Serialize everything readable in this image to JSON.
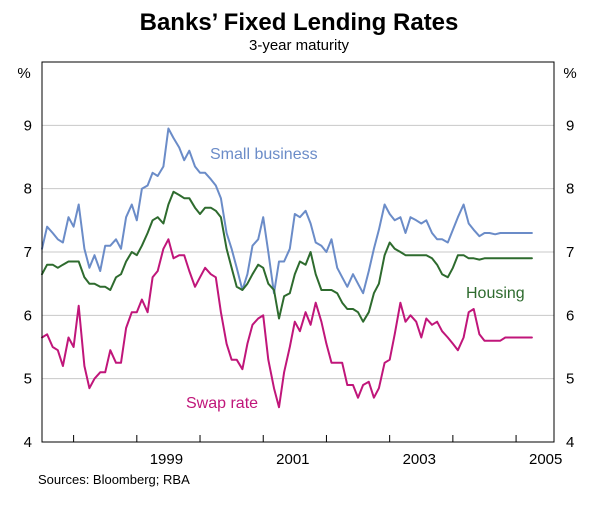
{
  "chart_data": {
    "type": "line",
    "title": "Banks’ Fixed Lending Rates",
    "subtitle": "3-year maturity",
    "ylabel_left": "%",
    "ylabel_right": "%",
    "ylim": [
      4,
      10
    ],
    "yticks": [
      "4",
      "5",
      "6",
      "7",
      "8",
      "9"
    ],
    "xlim": [
      1997.5,
      2005.6
    ],
    "xticks": [
      {
        "value": 1999.0,
        "label": "1999"
      },
      {
        "value": 2001.0,
        "label": "2001"
      },
      {
        "value": 2003.0,
        "label": "2003"
      },
      {
        "value": 2005.0,
        "label": "2005"
      }
    ],
    "source": "Sources: Bloomberg; RBA",
    "series": [
      {
        "name": "Small business",
        "color": "#6b8cc8",
        "x": [
          1997.5,
          1997.58,
          1997.67,
          1997.75,
          1997.83,
          1997.92,
          1998.0,
          1998.08,
          1998.17,
          1998.25,
          1998.33,
          1998.42,
          1998.5,
          1998.58,
          1998.67,
          1998.75,
          1998.83,
          1998.92,
          1999.0,
          1999.08,
          1999.17,
          1999.25,
          1999.33,
          1999.42,
          1999.5,
          1999.58,
          1999.67,
          1999.75,
          1999.83,
          1999.92,
          2000.0,
          2000.08,
          2000.17,
          2000.25,
          2000.33,
          2000.42,
          2000.5,
          2000.58,
          2000.67,
          2000.75,
          2000.83,
          2000.92,
          2001.0,
          2001.08,
          2001.17,
          2001.25,
          2001.33,
          2001.42,
          2001.5,
          2001.58,
          2001.67,
          2001.75,
          2001.83,
          2001.92,
          2002.0,
          2002.08,
          2002.17,
          2002.25,
          2002.33,
          2002.42,
          2002.5,
          2002.58,
          2002.67,
          2002.75,
          2002.83,
          2002.92,
          2003.0,
          2003.08,
          2003.17,
          2003.25,
          2003.33,
          2003.42,
          2003.5,
          2003.58,
          2003.67,
          2003.75,
          2003.83,
          2003.92,
          2004.0,
          2004.08,
          2004.17,
          2004.25,
          2004.33,
          2004.42,
          2004.5,
          2004.58,
          2004.67,
          2004.75,
          2004.83,
          2004.92,
          2005.0,
          2005.08,
          2005.17,
          2005.25
        ],
        "values": [
          7.05,
          7.4,
          7.3,
          7.2,
          7.15,
          7.55,
          7.4,
          7.75,
          7.05,
          6.75,
          6.95,
          6.7,
          7.1,
          7.1,
          7.2,
          7.05,
          7.55,
          7.75,
          7.5,
          8.0,
          8.05,
          8.25,
          8.2,
          8.35,
          8.95,
          8.8,
          8.65,
          8.45,
          8.6,
          8.35,
          8.25,
          8.25,
          8.15,
          8.05,
          7.85,
          7.3,
          7.05,
          6.75,
          6.4,
          6.65,
          7.1,
          7.2,
          7.55,
          7.0,
          6.35,
          6.85,
          6.85,
          7.05,
          7.6,
          7.55,
          7.65,
          7.45,
          7.15,
          7.1,
          7.0,
          7.2,
          6.75,
          6.6,
          6.45,
          6.65,
          6.5,
          6.35,
          6.7,
          7.05,
          7.35,
          7.75,
          7.6,
          7.5,
          7.55,
          7.3,
          7.55,
          7.5,
          7.45,
          7.5,
          7.3,
          7.2,
          7.2,
          7.15,
          7.35,
          7.55,
          7.75,
          7.45,
          7.35,
          7.25,
          7.3,
          7.3,
          7.28,
          7.3,
          7.3,
          7.3,
          7.3,
          7.3,
          7.3,
          7.3
        ]
      },
      {
        "name": "Housing",
        "color": "#2e6b2e",
        "x": [
          1997.5,
          1997.58,
          1997.67,
          1997.75,
          1997.83,
          1997.92,
          1998.0,
          1998.08,
          1998.17,
          1998.25,
          1998.33,
          1998.42,
          1998.5,
          1998.58,
          1998.67,
          1998.75,
          1998.83,
          1998.92,
          1999.0,
          1999.08,
          1999.17,
          1999.25,
          1999.33,
          1999.42,
          1999.5,
          1999.58,
          1999.67,
          1999.75,
          1999.83,
          1999.92,
          2000.0,
          2000.08,
          2000.17,
          2000.25,
          2000.33,
          2000.42,
          2000.5,
          2000.58,
          2000.67,
          2000.75,
          2000.83,
          2000.92,
          2001.0,
          2001.08,
          2001.17,
          2001.25,
          2001.33,
          2001.42,
          2001.5,
          2001.58,
          2001.67,
          2001.75,
          2001.83,
          2001.92,
          2002.0,
          2002.08,
          2002.17,
          2002.25,
          2002.33,
          2002.42,
          2002.5,
          2002.58,
          2002.67,
          2002.75,
          2002.83,
          2002.92,
          2003.0,
          2003.08,
          2003.17,
          2003.25,
          2003.33,
          2003.42,
          2003.5,
          2003.58,
          2003.67,
          2003.75,
          2003.83,
          2003.92,
          2004.0,
          2004.08,
          2004.17,
          2004.25,
          2004.33,
          2004.42,
          2004.5,
          2004.58,
          2004.67,
          2004.75,
          2004.83,
          2004.92,
          2005.0,
          2005.08,
          2005.17,
          2005.25
        ],
        "values": [
          6.65,
          6.8,
          6.8,
          6.75,
          6.8,
          6.85,
          6.85,
          6.85,
          6.6,
          6.5,
          6.5,
          6.45,
          6.45,
          6.4,
          6.6,
          6.65,
          6.85,
          7.0,
          6.95,
          7.1,
          7.3,
          7.5,
          7.55,
          7.45,
          7.75,
          7.95,
          7.9,
          7.85,
          7.85,
          7.7,
          7.6,
          7.7,
          7.7,
          7.65,
          7.55,
          7.05,
          6.75,
          6.45,
          6.4,
          6.5,
          6.65,
          6.8,
          6.75,
          6.5,
          6.4,
          5.95,
          6.3,
          6.35,
          6.65,
          6.85,
          6.8,
          7.0,
          6.65,
          6.4,
          6.4,
          6.4,
          6.35,
          6.2,
          6.1,
          6.1,
          6.05,
          5.9,
          6.05,
          6.35,
          6.5,
          6.95,
          7.15,
          7.05,
          7.0,
          6.95,
          6.95,
          6.95,
          6.95,
          6.95,
          6.9,
          6.8,
          6.65,
          6.6,
          6.75,
          6.95,
          6.95,
          6.9,
          6.9,
          6.88,
          6.9,
          6.9,
          6.9,
          6.9,
          6.9,
          6.9,
          6.9,
          6.9,
          6.9,
          6.9
        ]
      },
      {
        "name": "Swap rate",
        "color": "#c0167a",
        "x": [
          1997.5,
          1997.58,
          1997.67,
          1997.75,
          1997.83,
          1997.92,
          1998.0,
          1998.08,
          1998.17,
          1998.25,
          1998.33,
          1998.42,
          1998.5,
          1998.58,
          1998.67,
          1998.75,
          1998.83,
          1998.92,
          1999.0,
          1999.08,
          1999.17,
          1999.25,
          1999.33,
          1999.42,
          1999.5,
          1999.58,
          1999.67,
          1999.75,
          1999.83,
          1999.92,
          2000.0,
          2000.08,
          2000.17,
          2000.25,
          2000.33,
          2000.42,
          2000.5,
          2000.58,
          2000.67,
          2000.75,
          2000.83,
          2000.92,
          2001.0,
          2001.08,
          2001.17,
          2001.25,
          2001.33,
          2001.42,
          2001.5,
          2001.58,
          2001.67,
          2001.75,
          2001.83,
          2001.92,
          2002.0,
          2002.08,
          2002.17,
          2002.25,
          2002.33,
          2002.42,
          2002.5,
          2002.58,
          2002.67,
          2002.75,
          2002.83,
          2002.92,
          2003.0,
          2003.08,
          2003.17,
          2003.25,
          2003.33,
          2003.42,
          2003.5,
          2003.58,
          2003.67,
          2003.75,
          2003.83,
          2003.92,
          2004.0,
          2004.08,
          2004.17,
          2004.25,
          2004.33,
          2004.42,
          2004.5,
          2004.58,
          2004.67,
          2004.75,
          2004.83,
          2004.92,
          2005.0,
          2005.08,
          2005.17,
          2005.25
        ],
        "values": [
          5.65,
          5.7,
          5.5,
          5.45,
          5.2,
          5.65,
          5.5,
          6.15,
          5.2,
          4.85,
          5.0,
          5.1,
          5.1,
          5.45,
          5.25,
          5.25,
          5.8,
          6.05,
          6.05,
          6.25,
          6.05,
          6.6,
          6.7,
          7.05,
          7.2,
          6.9,
          6.95,
          6.95,
          6.7,
          6.45,
          6.6,
          6.75,
          6.65,
          6.6,
          6.05,
          5.55,
          5.3,
          5.3,
          5.15,
          5.55,
          5.85,
          5.95,
          6.0,
          5.3,
          4.85,
          4.55,
          5.1,
          5.5,
          5.9,
          5.75,
          6.05,
          5.85,
          6.2,
          5.9,
          5.55,
          5.25,
          5.25,
          5.25,
          4.9,
          4.9,
          4.7,
          4.9,
          4.95,
          4.7,
          4.85,
          5.25,
          5.3,
          5.7,
          6.2,
          5.9,
          6.0,
          5.9,
          5.65,
          5.95,
          5.85,
          5.9,
          5.75,
          5.65,
          5.55,
          5.45,
          5.65,
          6.05,
          6.1,
          5.7,
          5.6,
          5.6,
          5.6,
          5.6,
          5.65,
          5.65,
          5.65,
          5.65,
          5.65,
          5.65
        ]
      }
    ],
    "annotations": [
      {
        "text": "Small business",
        "color": "#6b8cc8"
      },
      {
        "text": "Housing",
        "color": "#2e6b2e"
      },
      {
        "text": "Swap rate",
        "color": "#c0167a"
      }
    ]
  }
}
